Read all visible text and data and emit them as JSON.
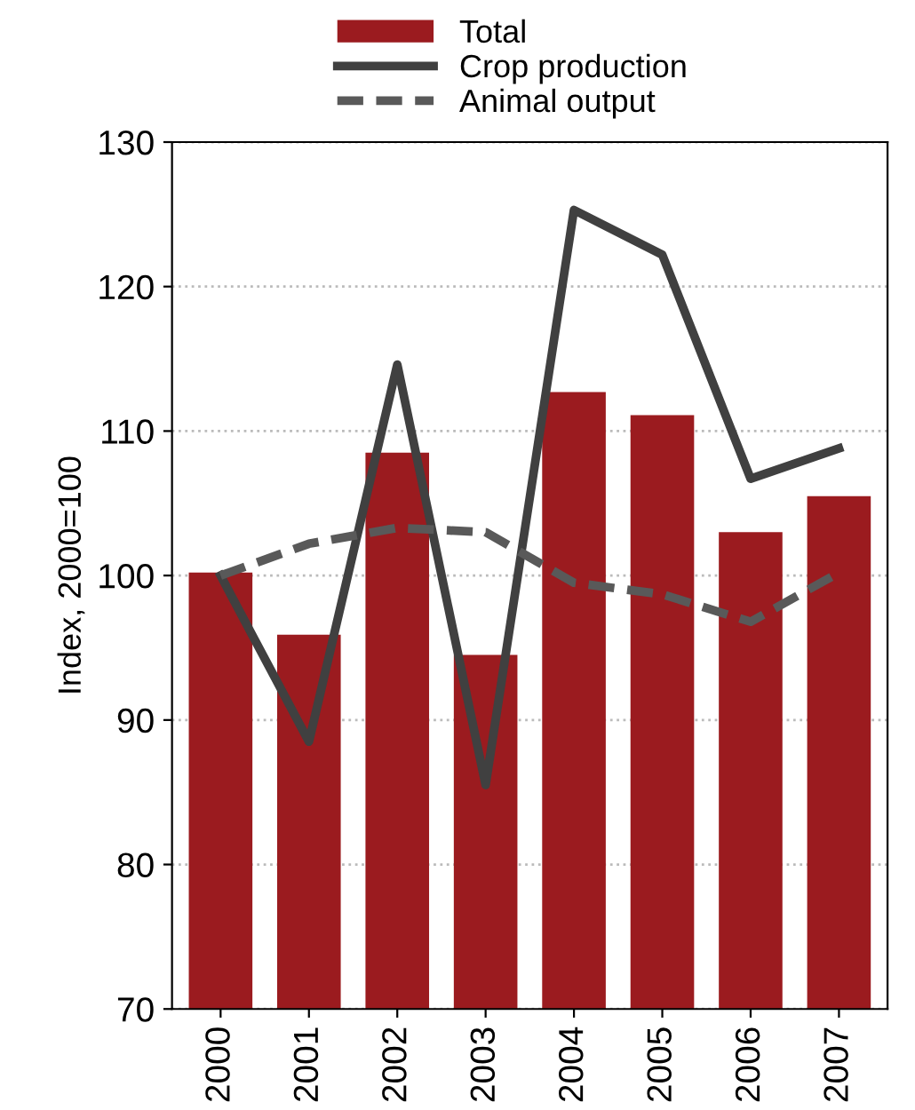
{
  "chart_data": {
    "type": "bar",
    "ylabel": "Index, 2000=100",
    "categories": [
      "2000",
      "2001",
      "2002",
      "2003",
      "2004",
      "2005",
      "2006",
      "2007"
    ],
    "series": [
      {
        "name": "Total",
        "color": "#9b1b1f",
        "values": [
          100.2,
          95.9,
          108.5,
          94.5,
          112.7,
          111.1,
          103.0,
          105.5
        ]
      },
      {
        "name": "Crop production",
        "type": "line",
        "color": "#404040",
        "line_style": "solid",
        "values": [
          100.0,
          88.5,
          114.6,
          85.5,
          125.3,
          122.2,
          106.7,
          108.8
        ]
      },
      {
        "name": "Animal output",
        "type": "line",
        "color": "#595959",
        "line_style": "dashed",
        "values": [
          100.0,
          102.2,
          103.3,
          103.0,
          99.5,
          98.7,
          96.8,
          100.2
        ]
      }
    ],
    "ylim": [
      70,
      130
    ],
    "yticks": [
      70,
      80,
      90,
      100,
      110,
      120,
      130
    ],
    "grid": "y",
    "legend": "top"
  }
}
